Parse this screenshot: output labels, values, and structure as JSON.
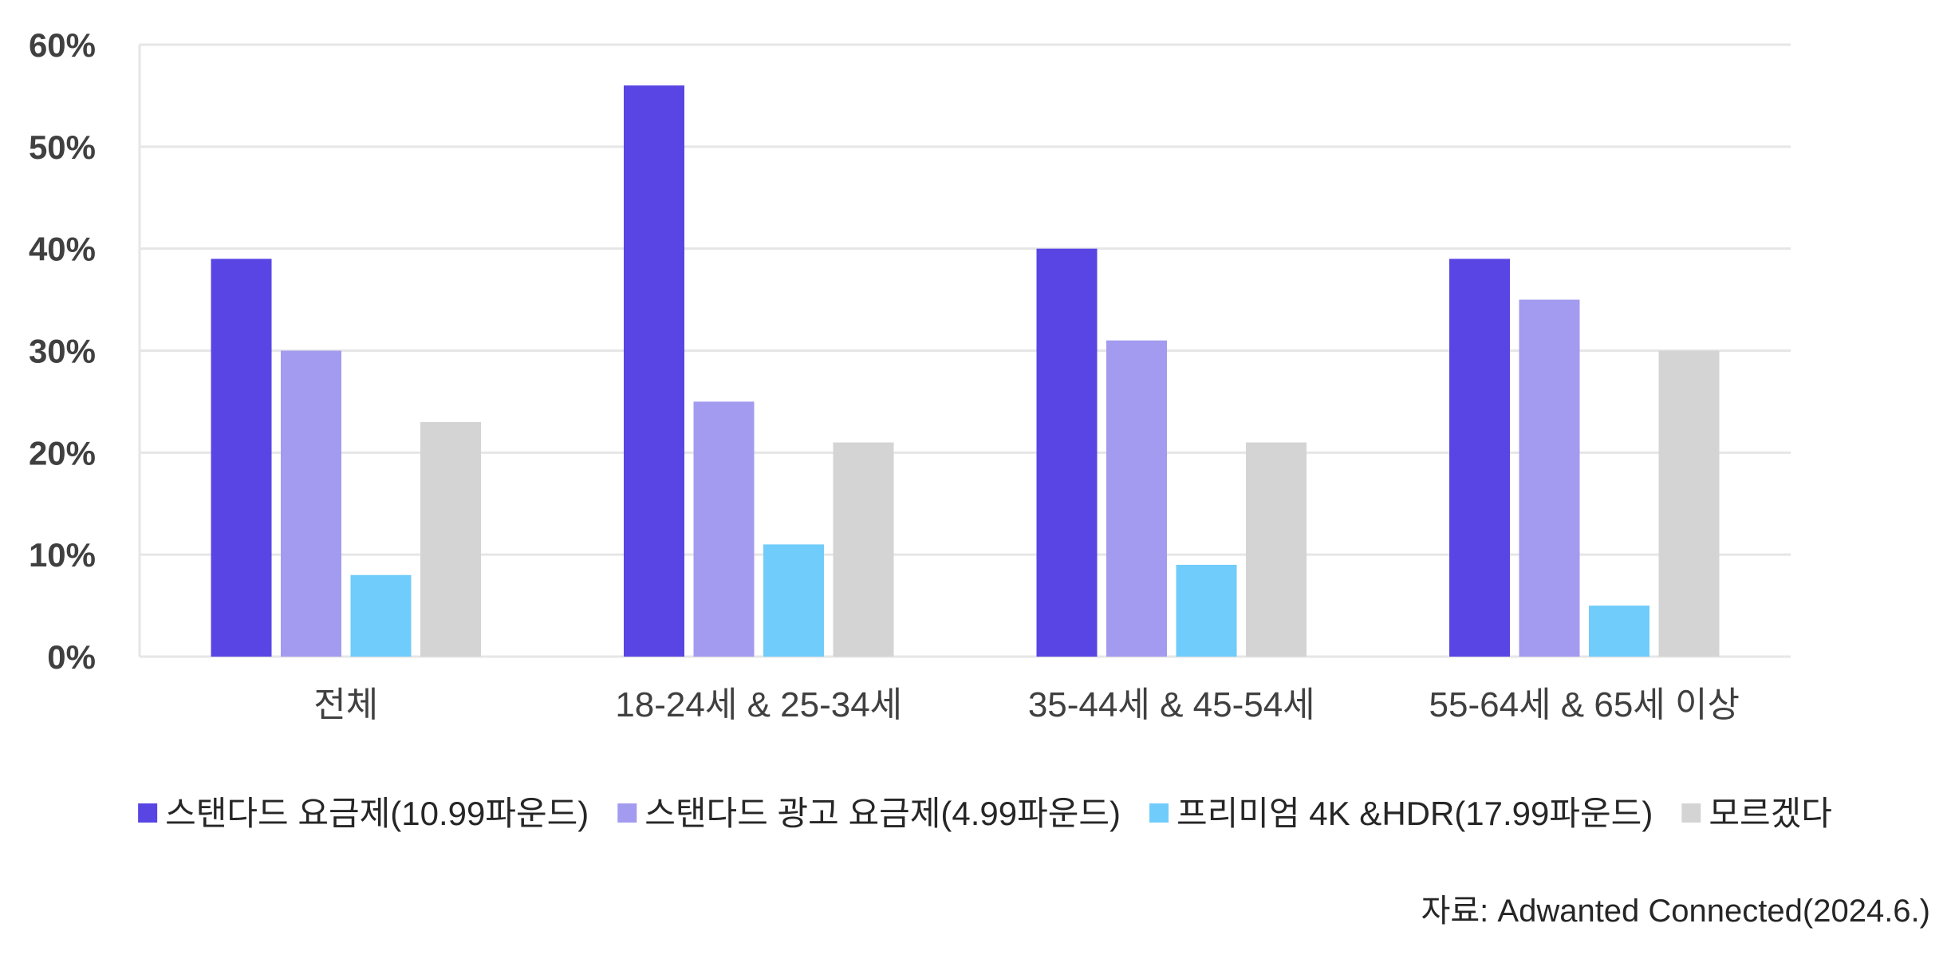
{
  "chart_data": {
    "type": "bar",
    "categories": [
      "전체",
      "18-24세 & 25-34세",
      "35-44세 & 45-54세",
      "55-64세 & 65세 이상"
    ],
    "series": [
      {
        "name": "스탠다드 요금제(10.99파운드)",
        "color": "#5845E3",
        "values": [
          39,
          56,
          40,
          39
        ]
      },
      {
        "name": "스탠다드 광고 요금제(4.99파운드)",
        "color": "#A39BEF",
        "values": [
          30,
          25,
          31,
          35
        ]
      },
      {
        "name": "프리미엄 4K &HDR(17.99파운드)",
        "color": "#70CCFA",
        "values": [
          8,
          11,
          9,
          5
        ]
      },
      {
        "name": "모르겠다",
        "color": "#D4D4D4",
        "values": [
          23,
          21,
          21,
          30
        ]
      }
    ],
    "ylim": [
      0,
      60
    ],
    "yticks": [
      0,
      10,
      20,
      30,
      40,
      50,
      60
    ],
    "ytick_labels": [
      "0%",
      "10%",
      "20%",
      "30%",
      "40%",
      "50%",
      "60%"
    ],
    "grid": true,
    "legend_position": "bottom",
    "source": "자료: Adwanted Connected(2024.6.)"
  }
}
